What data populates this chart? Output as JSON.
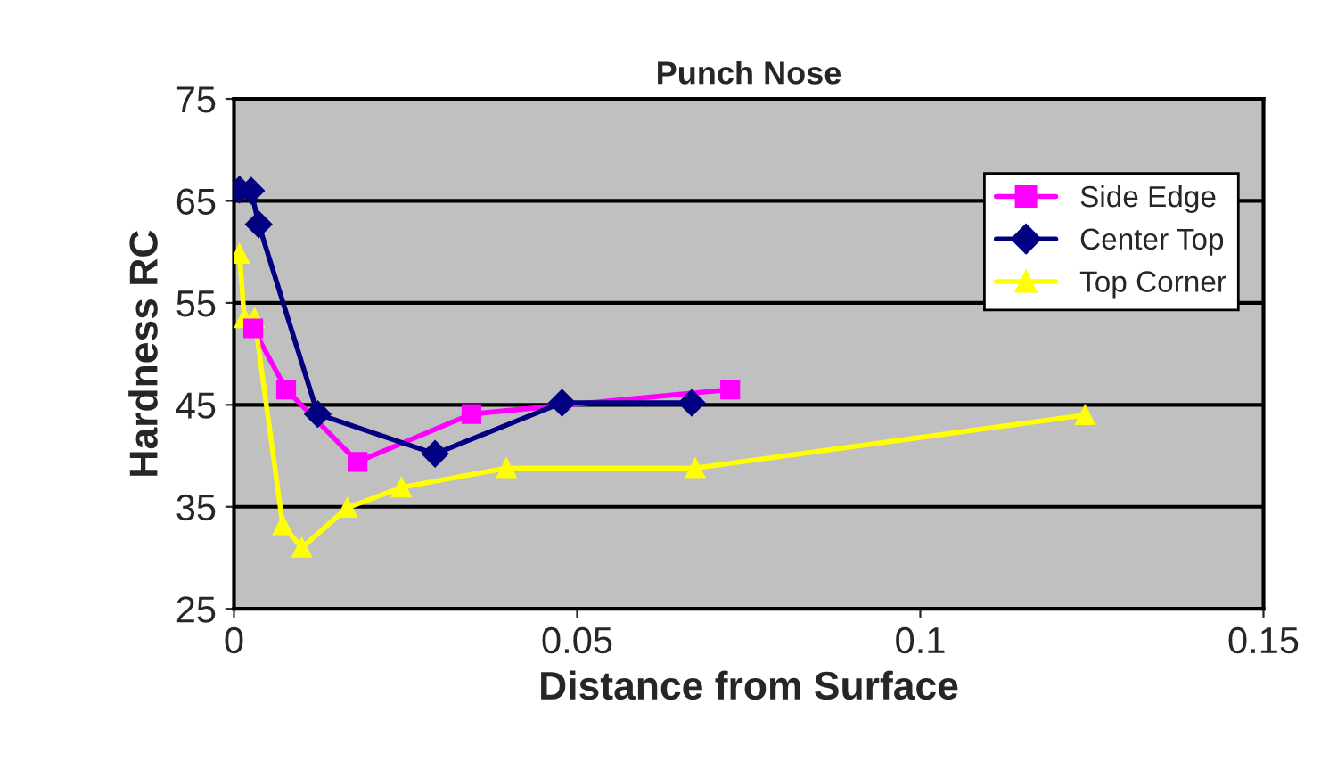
{
  "chart_data": {
    "type": "line",
    "title": "Punch Nose",
    "xlabel": "Distance from Surface",
    "ylabel": "Hardness RC",
    "xlim": [
      0,
      0.15
    ],
    "xticks": [
      0,
      0.05,
      0.1,
      0.15
    ],
    "ylim": [
      25,
      75
    ],
    "yticks": [
      25,
      35,
      45,
      55,
      65,
      75
    ],
    "grid": "y",
    "legend": "right",
    "line_style": "solid",
    "series": [
      {
        "name": "Side Edge",
        "color": "#ff00ff",
        "marker": "square",
        "x": [
          0.0028,
          0.0076,
          0.018,
          0.0346,
          0.0723
        ],
        "values": [
          52.5,
          46.5,
          39.4,
          44.1,
          46.5
        ]
      },
      {
        "name": "Center Top",
        "color": "#000080",
        "marker": "diamond",
        "x": [
          0.0008,
          0.0025,
          0.0036,
          0.0122,
          0.0293,
          0.0478,
          0.0667
        ],
        "values": [
          66.1,
          66,
          62.7,
          44.1,
          40.2,
          45.2,
          45.2
        ]
      },
      {
        "name": "Top Corner",
        "color": "#ffff00",
        "marker": "triangle",
        "x": [
          0.0008,
          0.0015,
          0.003,
          0.0071,
          0.0099,
          0.0165,
          0.0244,
          0.0397,
          0.0672,
          0.124
        ],
        "values": [
          59.8,
          53.5,
          53.5,
          33.2,
          31,
          34.9,
          36.9,
          38.8,
          38.8,
          44
        ]
      }
    ]
  }
}
